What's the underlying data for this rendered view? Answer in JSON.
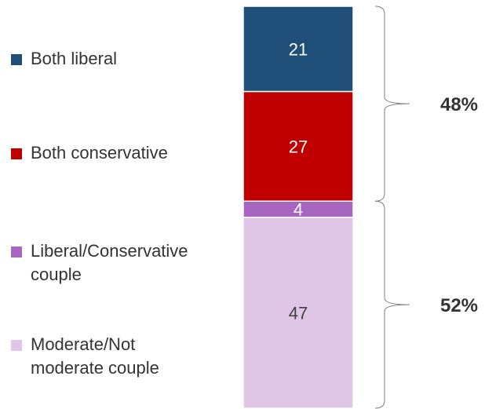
{
  "chart_data": {
    "type": "bar",
    "stacked": true,
    "categories": [
      ""
    ],
    "series": [
      {
        "name": "Both liberal",
        "values": [
          21
        ],
        "color": "#1f4e79"
      },
      {
        "name": "Both conservative",
        "values": [
          27
        ],
        "color": "#c00000"
      },
      {
        "name": "Liberal/Conservative couple",
        "values": [
          4
        ],
        "color": "#a865c0"
      },
      {
        "name": "Moderate/Not moderate couple",
        "values": [
          47
        ],
        "color": "#dfc6e6"
      }
    ],
    "data_labels": [
      "21",
      "27",
      "4",
      "47"
    ],
    "brackets": [
      {
        "label": "48%",
        "covers": [
          "Both liberal",
          "Both conservative"
        ]
      },
      {
        "label": "52%",
        "covers": [
          "Liberal/Conservative couple",
          "Moderate/Not moderate couple"
        ]
      }
    ],
    "legend_position": "left",
    "grid": false,
    "title": "",
    "xlabel": "",
    "ylabel": ""
  },
  "legend": {
    "items": [
      {
        "lines": [
          "Both liberal"
        ]
      },
      {
        "lines": [
          "Both conservative"
        ]
      },
      {
        "lines": [
          "Liberal/Conservative",
          "couple"
        ]
      },
      {
        "lines": [
          "Moderate/Not",
          "moderate couple"
        ]
      }
    ]
  }
}
